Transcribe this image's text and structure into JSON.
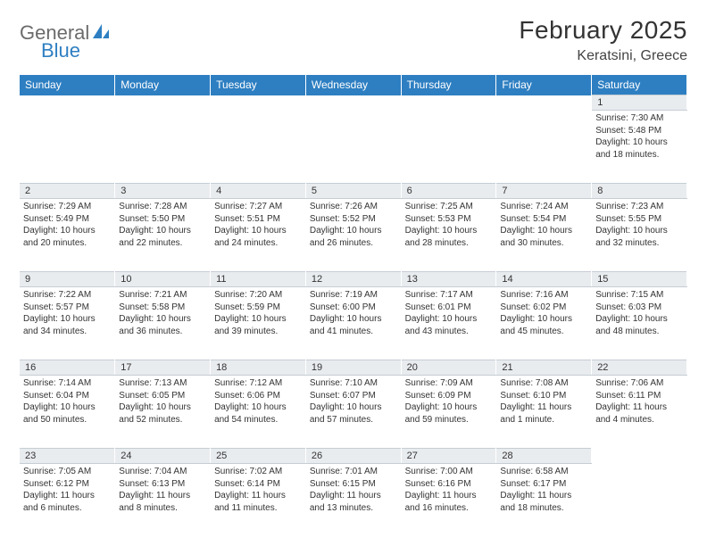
{
  "brand": {
    "part1": "General",
    "part2": "Blue"
  },
  "colors": {
    "header_bg": "#2e7fc2",
    "header_text": "#ffffff",
    "daynum_bg": "#e9ecef",
    "daynum_border": "#c5cdd4",
    "body_text": "#333333",
    "logo_gray": "#6b6b6b",
    "logo_blue": "#2e7fc2",
    "page_bg": "#ffffff"
  },
  "typography": {
    "base_family": "Arial, Helvetica, sans-serif",
    "title_size_pt": 21,
    "location_size_pt": 12,
    "dayname_size_pt": 9,
    "daynum_size_pt": 8,
    "cell_size_pt": 7.5
  },
  "title": "February 2025",
  "location": "Keratsini, Greece",
  "day_names": [
    "Sunday",
    "Monday",
    "Tuesday",
    "Wednesday",
    "Thursday",
    "Friday",
    "Saturday"
  ],
  "weeks": [
    {
      "nums": [
        "",
        "",
        "",
        "",
        "",
        "",
        "1"
      ],
      "cells": [
        null,
        null,
        null,
        null,
        null,
        null,
        {
          "sunrise": "7:30 AM",
          "sunset": "5:48 PM",
          "daylight": "10 hours and 18 minutes."
        }
      ]
    },
    {
      "nums": [
        "2",
        "3",
        "4",
        "5",
        "6",
        "7",
        "8"
      ],
      "cells": [
        {
          "sunrise": "7:29 AM",
          "sunset": "5:49 PM",
          "daylight": "10 hours and 20 minutes."
        },
        {
          "sunrise": "7:28 AM",
          "sunset": "5:50 PM",
          "daylight": "10 hours and 22 minutes."
        },
        {
          "sunrise": "7:27 AM",
          "sunset": "5:51 PM",
          "daylight": "10 hours and 24 minutes."
        },
        {
          "sunrise": "7:26 AM",
          "sunset": "5:52 PM",
          "daylight": "10 hours and 26 minutes."
        },
        {
          "sunrise": "7:25 AM",
          "sunset": "5:53 PM",
          "daylight": "10 hours and 28 minutes."
        },
        {
          "sunrise": "7:24 AM",
          "sunset": "5:54 PM",
          "daylight": "10 hours and 30 minutes."
        },
        {
          "sunrise": "7:23 AM",
          "sunset": "5:55 PM",
          "daylight": "10 hours and 32 minutes."
        }
      ]
    },
    {
      "nums": [
        "9",
        "10",
        "11",
        "12",
        "13",
        "14",
        "15"
      ],
      "cells": [
        {
          "sunrise": "7:22 AM",
          "sunset": "5:57 PM",
          "daylight": "10 hours and 34 minutes."
        },
        {
          "sunrise": "7:21 AM",
          "sunset": "5:58 PM",
          "daylight": "10 hours and 36 minutes."
        },
        {
          "sunrise": "7:20 AM",
          "sunset": "5:59 PM",
          "daylight": "10 hours and 39 minutes."
        },
        {
          "sunrise": "7:19 AM",
          "sunset": "6:00 PM",
          "daylight": "10 hours and 41 minutes."
        },
        {
          "sunrise": "7:17 AM",
          "sunset": "6:01 PM",
          "daylight": "10 hours and 43 minutes."
        },
        {
          "sunrise": "7:16 AM",
          "sunset": "6:02 PM",
          "daylight": "10 hours and 45 minutes."
        },
        {
          "sunrise": "7:15 AM",
          "sunset": "6:03 PM",
          "daylight": "10 hours and 48 minutes."
        }
      ]
    },
    {
      "nums": [
        "16",
        "17",
        "18",
        "19",
        "20",
        "21",
        "22"
      ],
      "cells": [
        {
          "sunrise": "7:14 AM",
          "sunset": "6:04 PM",
          "daylight": "10 hours and 50 minutes."
        },
        {
          "sunrise": "7:13 AM",
          "sunset": "6:05 PM",
          "daylight": "10 hours and 52 minutes."
        },
        {
          "sunrise": "7:12 AM",
          "sunset": "6:06 PM",
          "daylight": "10 hours and 54 minutes."
        },
        {
          "sunrise": "7:10 AM",
          "sunset": "6:07 PM",
          "daylight": "10 hours and 57 minutes."
        },
        {
          "sunrise": "7:09 AM",
          "sunset": "6:09 PM",
          "daylight": "10 hours and 59 minutes."
        },
        {
          "sunrise": "7:08 AM",
          "sunset": "6:10 PM",
          "daylight": "11 hours and 1 minute."
        },
        {
          "sunrise": "7:06 AM",
          "sunset": "6:11 PM",
          "daylight": "11 hours and 4 minutes."
        }
      ]
    },
    {
      "nums": [
        "23",
        "24",
        "25",
        "26",
        "27",
        "28",
        ""
      ],
      "cells": [
        {
          "sunrise": "7:05 AM",
          "sunset": "6:12 PM",
          "daylight": "11 hours and 6 minutes."
        },
        {
          "sunrise": "7:04 AM",
          "sunset": "6:13 PM",
          "daylight": "11 hours and 8 minutes."
        },
        {
          "sunrise": "7:02 AM",
          "sunset": "6:14 PM",
          "daylight": "11 hours and 11 minutes."
        },
        {
          "sunrise": "7:01 AM",
          "sunset": "6:15 PM",
          "daylight": "11 hours and 13 minutes."
        },
        {
          "sunrise": "7:00 AM",
          "sunset": "6:16 PM",
          "daylight": "11 hours and 16 minutes."
        },
        {
          "sunrise": "6:58 AM",
          "sunset": "6:17 PM",
          "daylight": "11 hours and 18 minutes."
        },
        null
      ]
    }
  ],
  "labels": {
    "sunrise": "Sunrise:",
    "sunset": "Sunset:",
    "daylight": "Daylight:"
  }
}
